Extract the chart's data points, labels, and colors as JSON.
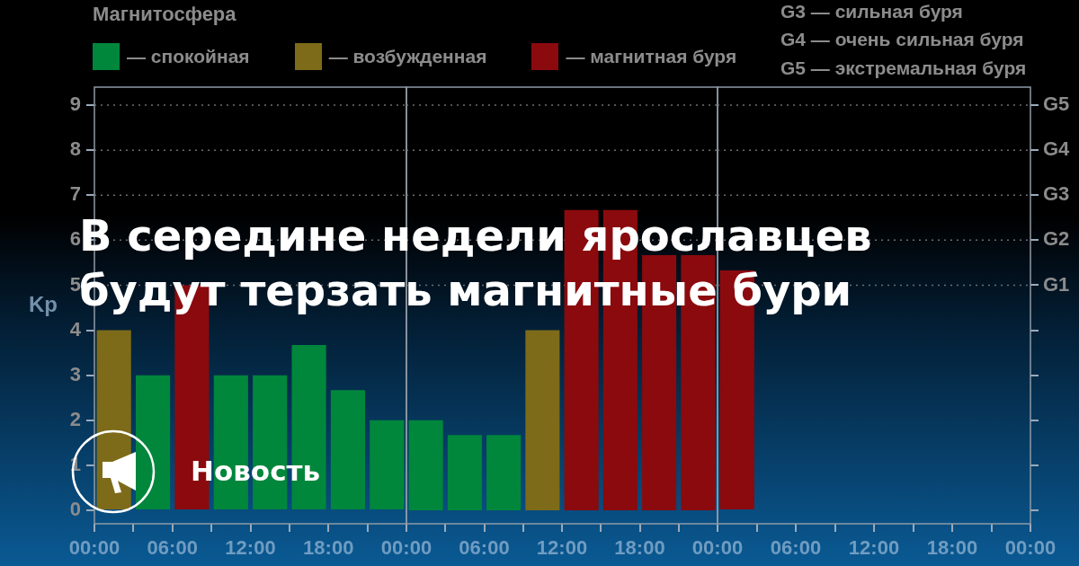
{
  "chart_data": [
    {
      "type": "bar",
      "title": "В середине недели ярославцев будут терзать магнитные бури",
      "ylabel": "Kp",
      "legend_title": "Магнитосфера",
      "legend": "top",
      "annotations": [
        "Новость"
      ],
      "x": [
        1.5,
        4.5,
        7.5,
        10.5,
        13.5,
        16.5,
        19.5,
        22.5
      ],
      "series": [
        {
          "name": "— спокойная",
          "color": "#00873c",
          "values": [
            null,
            3,
            null,
            3,
            3,
            3.67,
            2.67,
            2
          ]
        },
        {
          "name": "— возбужденная",
          "color": "#7d6b19",
          "values": [
            4,
            null,
            null,
            null,
            null,
            null,
            null,
            null
          ]
        },
        {
          "name": "— магнитная буря",
          "color": "#8b0a0e",
          "values": [
            null,
            null,
            5,
            null,
            null,
            null,
            null,
            null
          ]
        }
      ],
      "xlim": [
        0,
        24
      ],
      "xticks": [
        {
          "value": 0,
          "label": "00:00"
        },
        {
          "value": 3,
          "label": null
        },
        {
          "value": 6,
          "label": "06:00"
        },
        {
          "value": 9,
          "label": null
        },
        {
          "value": 12,
          "label": "12:00"
        },
        {
          "value": 15,
          "label": null
        },
        {
          "value": 18,
          "label": "18:00"
        },
        {
          "value": 21,
          "label": null
        }
      ],
      "ylim": [
        -0.3,
        9.4
      ],
      "yticks": [
        0,
        1,
        2,
        3,
        4,
        5,
        6,
        7,
        8,
        9
      ],
      "ref_lines": [
        {
          "axis": "y",
          "value": 5,
          "color": "#6e6e6e",
          "line_style": "dotted"
        },
        {
          "axis": "y",
          "value": 6,
          "color": "#6e6e6e",
          "line_style": "dotted"
        },
        {
          "axis": "y",
          "value": 7,
          "color": "#6e6e6e",
          "line_style": "dotted"
        },
        {
          "axis": "y",
          "value": 8,
          "color": "#6e6e6e",
          "line_style": "dotted"
        },
        {
          "axis": "y",
          "value": 9,
          "color": "#6e6e6e",
          "line_style": "dotted"
        }
      ]
    },
    {
      "type": "bar",
      "x": [
        1.5,
        4.5,
        7.5,
        10.5,
        13.5,
        16.5,
        19.5,
        22.5
      ],
      "series": [
        {
          "color": "#00873c",
          "values": [
            2,
            1.67,
            1.67,
            null,
            null,
            null,
            null,
            null
          ]
        },
        {
          "color": "#7d6b19",
          "values": [
            null,
            null,
            null,
            4,
            null,
            null,
            null,
            null
          ]
        },
        {
          "color": "#8b0a0e",
          "values": [
            null,
            null,
            null,
            null,
            6.67,
            6.67,
            5.67,
            5.67
          ]
        }
      ],
      "xlim": [
        0,
        24
      ],
      "xticks": [
        {
          "value": 0,
          "label": "00:00"
        },
        {
          "value": 3,
          "label": null
        },
        {
          "value": 6,
          "label": "06:00"
        },
        {
          "value": 9,
          "label": null
        },
        {
          "value": 12,
          "label": "12:00"
        },
        {
          "value": 15,
          "label": null
        },
        {
          "value": 18,
          "label": "18:00"
        },
        {
          "value": 21,
          "label": null
        }
      ],
      "ylim": [
        -0.3,
        9.4
      ],
      "tick_labels": "x",
      "ref_lines": [
        {
          "axis": "y",
          "value": 5,
          "color": "#6e6e6e",
          "line_style": "dotted"
        },
        {
          "axis": "y",
          "value": 6,
          "color": "#6e6e6e",
          "line_style": "dotted"
        },
        {
          "axis": "y",
          "value": 7,
          "color": "#6e6e6e",
          "line_style": "dotted"
        },
        {
          "axis": "y",
          "value": 8,
          "color": "#6e6e6e",
          "line_style": "dotted"
        },
        {
          "axis": "y",
          "value": 9,
          "color": "#6e6e6e",
          "line_style": "dotted"
        }
      ]
    },
    {
      "type": "bar",
      "annotations": [
        "G3 — сильная буря",
        "G4 — очень сильная буря",
        "G5 — экстремальная буря"
      ],
      "x": [
        1.5
      ],
      "series": [
        {
          "color": "#8b0a0e",
          "values": [
            5.33
          ]
        }
      ],
      "xlim": [
        0,
        24
      ],
      "xticks": [
        {
          "value": 0,
          "label": "00:00"
        },
        {
          "value": 3,
          "label": null
        },
        {
          "value": 6,
          "label": "06:00"
        },
        {
          "value": 9,
          "label": null
        },
        {
          "value": 12,
          "label": "12:00"
        },
        {
          "value": 15,
          "label": null
        },
        {
          "value": 18,
          "label": "18:00"
        },
        {
          "value": 21,
          "label": null
        },
        {
          "value": 24,
          "label": "00:00"
        }
      ],
      "ylim": [
        -0.3,
        9.4
      ],
      "yticks": [
        {
          "value": 0,
          "label": null
        },
        {
          "value": 1,
          "label": null
        },
        {
          "value": 2,
          "label": null
        },
        {
          "value": 3,
          "label": null
        },
        {
          "value": 4,
          "label": null
        },
        {
          "value": 5,
          "label": null
        },
        {
          "value": 6,
          "label": null
        },
        {
          "value": 7,
          "label": null
        },
        {
          "value": 8,
          "label": null
        },
        {
          "value": 9,
          "label": null
        }
      ],
      "tick_labels": "x",
      "ref_lines": [
        {
          "axis": "y",
          "value": 5,
          "label": "G1",
          "color": "#6e6e6e",
          "line_style": "dotted"
        },
        {
          "axis": "y",
          "value": 6,
          "label": "G2",
          "color": "#6e6e6e",
          "line_style": "dotted"
        },
        {
          "axis": "y",
          "value": 7,
          "label": "G3",
          "color": "#6e6e6e",
          "line_style": "dotted"
        },
        {
          "axis": "y",
          "value": 8,
          "label": "G4",
          "color": "#6e6e6e",
          "line_style": "dotted"
        },
        {
          "axis": "y",
          "value": 9,
          "label": "G5",
          "color": "#6e6e6e",
          "line_style": "dotted"
        }
      ]
    }
  ]
}
